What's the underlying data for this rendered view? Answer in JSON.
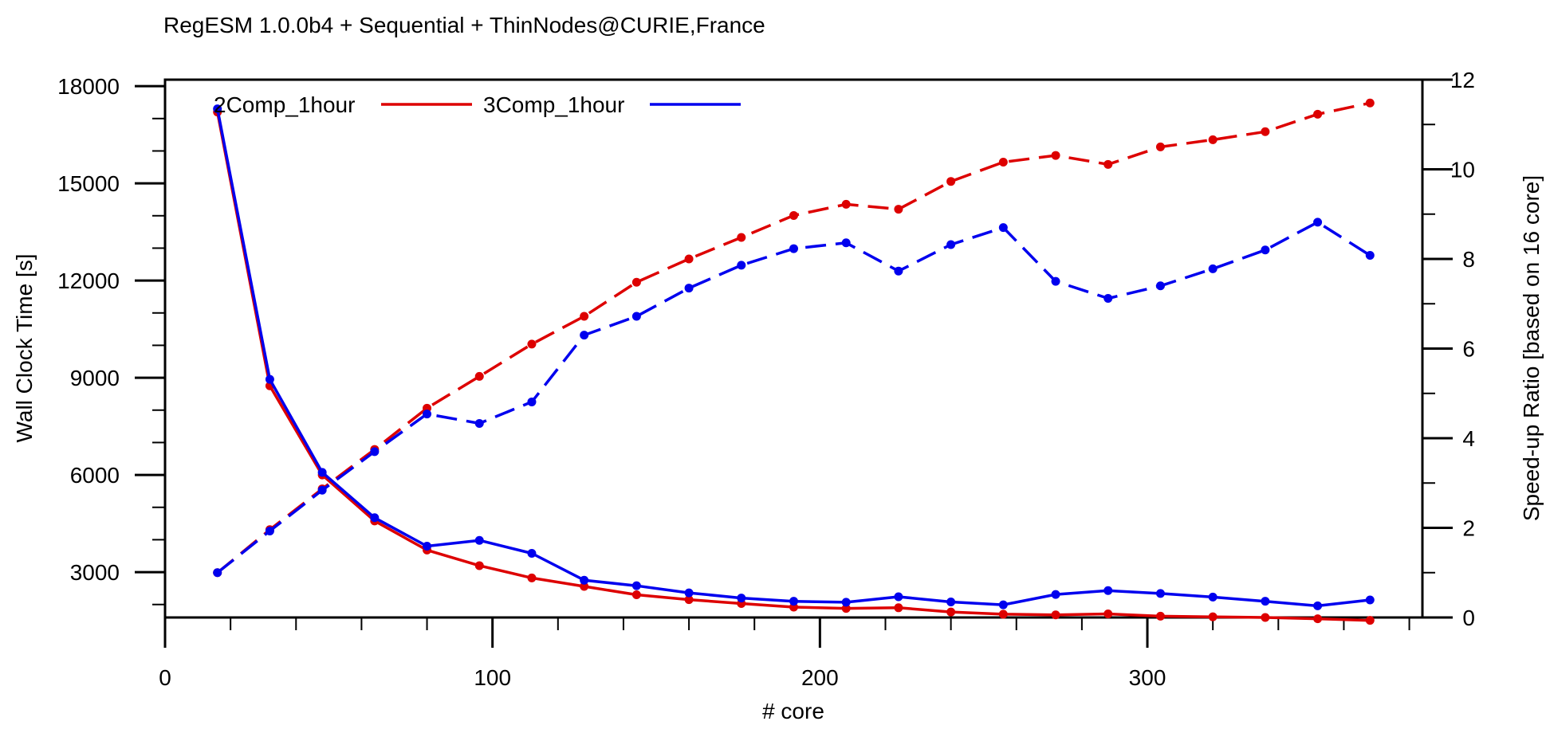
{
  "chart_data": {
    "type": "line",
    "title": "RegESM 1.0.0b4 + Sequential + ThinNodes@CURIE,France",
    "xlabel": "# core",
    "ylabel": "Wall Clock Time [s]",
    "y2label": "Speed-up Ratio [based on 16 core]",
    "xlim": [
      0,
      384
    ],
    "ylim": [
      1600,
      18200
    ],
    "y2lim": [
      0,
      12
    ],
    "x_ticks": [
      0,
      100,
      200,
      300
    ],
    "y_ticks": [
      3000,
      6000,
      9000,
      12000,
      15000,
      18000
    ],
    "y2_ticks": [
      0,
      2,
      4,
      6,
      8,
      10,
      12
    ],
    "legend_position": "top-left",
    "x": [
      16,
      32,
      48,
      64,
      80,
      96,
      112,
      128,
      144,
      160,
      176,
      192,
      208,
      224,
      240,
      256,
      272,
      288,
      304,
      320,
      336,
      352,
      368
    ],
    "series": [
      {
        "name": "2Comp_1hour",
        "color": "#dd0000",
        "axis": "left",
        "style": "solid",
        "values": [
          17200,
          8750,
          6000,
          4580,
          3680,
          3200,
          2820,
          2560,
          2300,
          2150,
          2030,
          1920,
          1880,
          1900,
          1770,
          1700,
          1680,
          1710,
          1640,
          1620,
          1600,
          1560,
          1510
        ]
      },
      {
        "name": "3Comp_1hour",
        "color": "#0000ee",
        "axis": "left",
        "style": "solid",
        "values": [
          17300,
          8950,
          6080,
          4680,
          3800,
          3980,
          3580,
          2750,
          2580,
          2360,
          2200,
          2100,
          2070,
          2240,
          2080,
          1990,
          2310,
          2430,
          2340,
          2230,
          2100,
          1960,
          2140
        ]
      },
      {
        "name": "2Comp_1hour",
        "color": "#dd0000",
        "axis": "right",
        "style": "dashed",
        "values": [
          1.0,
          1.96,
          2.87,
          3.75,
          4.67,
          5.38,
          6.1,
          6.72,
          7.48,
          8.0,
          8.48,
          8.97,
          9.22,
          9.11,
          9.73,
          10.16,
          10.31,
          10.11,
          10.5,
          10.66,
          10.84,
          11.23,
          11.48
        ]
      },
      {
        "name": "3Comp_1hour",
        "color": "#0000ee",
        "axis": "right",
        "style": "dashed",
        "values": [
          1.0,
          1.93,
          2.84,
          3.7,
          4.54,
          4.33,
          4.81,
          6.3,
          6.72,
          7.35,
          7.86,
          8.23,
          8.36,
          7.73,
          8.32,
          8.7,
          7.5,
          7.12,
          7.4,
          7.78,
          8.2,
          8.82,
          8.08
        ]
      }
    ]
  }
}
